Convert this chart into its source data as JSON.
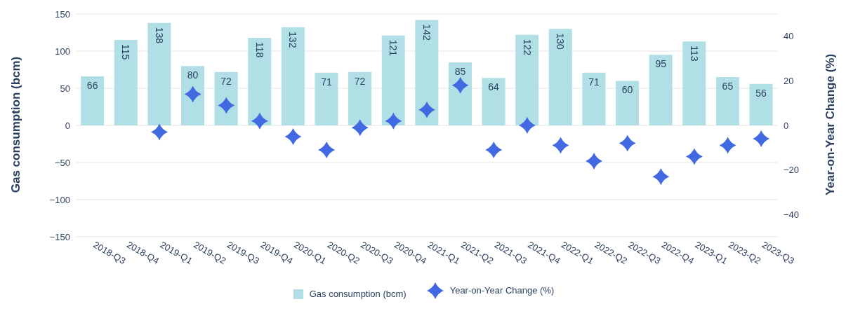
{
  "chart_data": {
    "type": "bar",
    "ylabel": "Gas consumption (bcm)",
    "y2label": "Year-on-Year Change (%)",
    "categories": [
      "2018-Q3",
      "2018-Q4",
      "2019-Q1",
      "2019-Q2",
      "2019-Q3",
      "2019-Q4",
      "2020-Q1",
      "2020-Q2",
      "2020-Q3",
      "2020-Q4",
      "2021-Q1",
      "2021-Q2",
      "2021-Q3",
      "2021-Q4",
      "2022-Q1",
      "2022-Q2",
      "2022-Q3",
      "2022-Q4",
      "2023-Q1",
      "2023-Q2",
      "2023-Q3"
    ],
    "series": [
      {
        "name": "Gas consumption (bcm)",
        "color": "#b0e0e6",
        "data_labels": true,
        "values": [
          66,
          115,
          138,
          80,
          72,
          118,
          132,
          71,
          72,
          121,
          142,
          85,
          64,
          122,
          130,
          71,
          60,
          95,
          113,
          65,
          56
        ]
      },
      {
        "name": "Year-on-Year Change (%)",
        "type": "scatter",
        "axis": "y2",
        "marker": "star",
        "color": "#4169e1",
        "values": [
          null,
          null,
          -3,
          14,
          9,
          2,
          -5,
          -11,
          -1,
          2,
          7,
          18,
          -11,
          0,
          -9,
          -16,
          -8,
          -23,
          -14,
          -9,
          -6
        ]
      }
    ],
    "ylim": [
      -150,
      150
    ],
    "yticks": [
      -150,
      -100,
      -50,
      0,
      50,
      100,
      150
    ],
    "y2lim": [
      -50,
      50
    ],
    "y2ticks": [
      -40,
      -20,
      0,
      20,
      40
    ],
    "grid": "y",
    "legend": "bottom"
  }
}
